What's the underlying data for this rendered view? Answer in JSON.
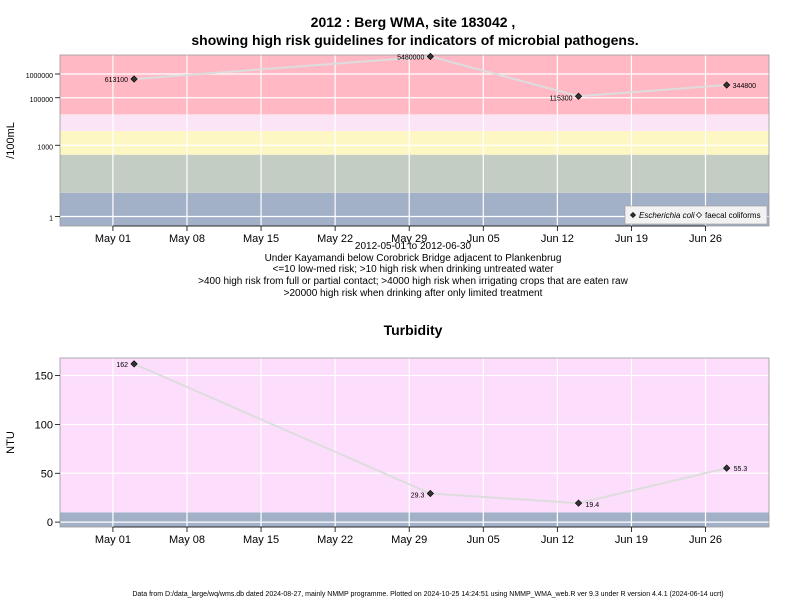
{
  "page": {
    "title_line1": "2012 : Berg WMA, site 183042 ,",
    "title_line2": "showing high risk guidelines for indicators of microbial pathogens.",
    "subtitle_lines": [
      "2012-05-01 to 2012-06-30",
      "Under Kayamandi below Corobrick Bridge adjacent to Plankenbrug",
      "<=10 low-med risk; >10 high risk when drinking untreated water",
      ">400 high risk from full or partial contact; >4000 high risk when irrigating crops that are eaten raw",
      ">20000 high risk when drinking after only limited treatment"
    ],
    "credit": "Data from D:/data_large/wq/wms.db dated 2024-08-27, mainly NMMP programme. Plotted on 2024-10-25 14:24:51 using NMMP_WMA_web.R ver 9.3 under R version 4.4.1 (2024-06-14 ucrt)"
  },
  "chart_data": [
    {
      "type": "scatter",
      "title": "",
      "ylabel": "/100mL",
      "scale": "log",
      "xlim": [
        "2012-04-26",
        "2012-07-02"
      ],
      "ylim_log10": [
        -0.4,
        6.8
      ],
      "x_ticks": [
        {
          "date": "2012-05-01",
          "label": "May 01"
        },
        {
          "date": "2012-05-08",
          "label": "May 08"
        },
        {
          "date": "2012-05-15",
          "label": "May 15"
        },
        {
          "date": "2012-05-22",
          "label": "May 22"
        },
        {
          "date": "2012-05-29",
          "label": "May 29"
        },
        {
          "date": "2012-06-05",
          "label": "Jun 05"
        },
        {
          "date": "2012-06-12",
          "label": "Jun 12"
        },
        {
          "date": "2012-06-19",
          "label": "Jun 19"
        },
        {
          "date": "2012-06-26",
          "label": "Jun 26"
        }
      ],
      "y_ticks": [
        {
          "value": 1,
          "label": "1"
        },
        {
          "value": 1000,
          "label": "1000"
        },
        {
          "value": 100000,
          "label": "100000"
        },
        {
          "value": 1000000,
          "label": "1000000"
        }
      ],
      "risk_bands": [
        {
          "from": 0.4,
          "to": 10,
          "color": "#a3b1c8"
        },
        {
          "from": 10,
          "to": 400,
          "color": "#c4cdc4"
        },
        {
          "from": 400,
          "to": 4000,
          "color": "#fdf7c3"
        },
        {
          "from": 4000,
          "to": 20000,
          "color": "#fbe4f6"
        },
        {
          "from": 20000,
          "to": 6300000,
          "color": "#ffb8c4"
        }
      ],
      "series": [
        {
          "name": "Escherichia coli",
          "color": "#333333",
          "line_color": "#dddddd",
          "points": [
            {
              "x": "2012-05-03",
              "y": 613100,
              "label": "613100"
            },
            {
              "x": "2012-05-31",
              "y": 5480000,
              "label": "5480000"
            },
            {
              "x": "2012-06-14",
              "y": 115300,
              "label": "115300"
            },
            {
              "x": "2012-06-28",
              "y": 344800,
              "label": "344800"
            }
          ]
        },
        {
          "name": "faecal coliforms",
          "color": "#ffffff",
          "points": []
        }
      ],
      "legend": "bottom-right"
    },
    {
      "type": "scatter",
      "title": "Turbidity",
      "ylabel": "NTU",
      "scale": "linear",
      "xlim": [
        "2012-04-26",
        "2012-07-02"
      ],
      "ylim": [
        -5,
        168
      ],
      "x_ticks": [
        {
          "date": "2012-05-01",
          "label": "May 01"
        },
        {
          "date": "2012-05-08",
          "label": "May 08"
        },
        {
          "date": "2012-05-15",
          "label": "May 15"
        },
        {
          "date": "2012-05-22",
          "label": "May 22"
        },
        {
          "date": "2012-05-29",
          "label": "May 29"
        },
        {
          "date": "2012-06-05",
          "label": "Jun 05"
        },
        {
          "date": "2012-06-12",
          "label": "Jun 12"
        },
        {
          "date": "2012-06-19",
          "label": "Jun 19"
        },
        {
          "date": "2012-06-26",
          "label": "Jun 26"
        }
      ],
      "y_ticks": [
        {
          "value": 0,
          "label": "0"
        },
        {
          "value": 50,
          "label": "50"
        },
        {
          "value": 100,
          "label": "100"
        },
        {
          "value": 150,
          "label": "150"
        }
      ],
      "risk_bands": [
        {
          "from": -5,
          "to": 10,
          "color": "#a3b1c8"
        },
        {
          "from": 10,
          "to": 168,
          "color": "#fcddfb"
        }
      ],
      "series": [
        {
          "name": "",
          "color": "#333333",
          "line_color": "#dddddd",
          "points": [
            {
              "x": "2012-05-03",
              "y": 162,
              "label": "162"
            },
            {
              "x": "2012-05-31",
              "y": 29.3,
              "label": "29.3"
            },
            {
              "x": "2012-06-14",
              "y": 19.4,
              "label": "19.4"
            },
            {
              "x": "2012-06-28",
              "y": 55.3,
              "label": "55.3"
            }
          ]
        }
      ]
    }
  ]
}
